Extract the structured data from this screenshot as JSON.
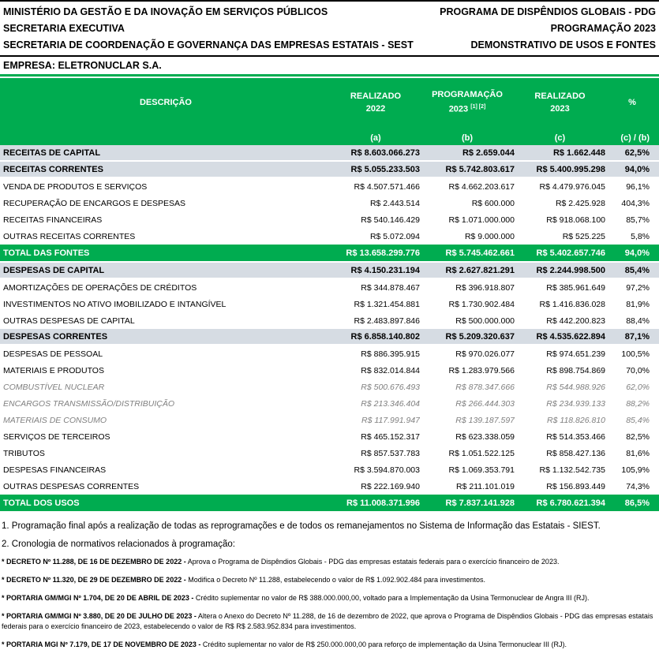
{
  "colors": {
    "green": "#00AC50",
    "section_bg": "#D6DCE3",
    "detail_text": "#7f7f7f"
  },
  "letterhead": {
    "left_lines": [
      "MINISTÉRIO DA GESTÃO E DA INOVAÇÃO EM SERVIÇOS PÚBLICOS",
      "SECRETARIA EXECUTIVA",
      "SECRETARIA DE COORDENAÇÃO E GOVERNANÇA DAS EMPRESAS ESTATAIS - SEST"
    ],
    "right_lines": [
      "PROGRAMA DE DISPÊNDIOS GLOBAIS - PDG",
      "PROGRAMAÇÃO 2023",
      "DEMONSTRATIVO DE USOS E FONTES"
    ],
    "company": "EMPRESA: ELETRONUCLAR S.A."
  },
  "table": {
    "columns": {
      "desc": "DESCRIÇÃO",
      "a": {
        "line1": "REALIZADO",
        "line2": "2022",
        "sub": "(a)"
      },
      "b": {
        "line1": "PROGRAMAÇÃO",
        "line2": "2023",
        "sup": "[1] [2]",
        "sub": "(b)"
      },
      "c": {
        "line1": "REALIZADO",
        "line2": "2023",
        "sub": "(c)"
      },
      "pct": {
        "line1": "%",
        "sub": "(c) / (b)"
      }
    },
    "rows": [
      {
        "style": "section",
        "desc": "RECEITAS DE CAPITAL",
        "a": "R$ 8.603.066.273",
        "b": "R$ 2.659.044",
        "c": "R$ 1.662.448",
        "pct": "62,5%"
      },
      {
        "style": "section",
        "desc": "RECEITAS CORRENTES",
        "a": "R$ 5.055.233.503",
        "b": "R$ 5.742.803.617",
        "c": "R$ 5.400.995.298",
        "pct": "94,0%"
      },
      {
        "style": "normal",
        "desc": "VENDA DE PRODUTOS E SERVIÇOS",
        "a": "R$ 4.507.571.466",
        "b": "R$ 4.662.203.617",
        "c": "R$ 4.479.976.045",
        "pct": "96,1%"
      },
      {
        "style": "normal",
        "desc": "RECUPERAÇÃO DE ENCARGOS E DESPESAS",
        "a": "R$ 2.443.514",
        "b": "R$ 600.000",
        "c": "R$ 2.425.928",
        "pct": "404,3%"
      },
      {
        "style": "normal",
        "desc": "RECEITAS FINANCEIRAS",
        "a": "R$ 540.146.429",
        "b": "R$ 1.071.000.000",
        "c": "R$ 918.068.100",
        "pct": "85,7%"
      },
      {
        "style": "normal",
        "desc": "OUTRAS RECEITAS CORRENTES",
        "a": "R$ 5.072.094",
        "b": "R$ 9.000.000",
        "c": "R$ 525.225",
        "pct": "5,8%"
      },
      {
        "style": "total",
        "desc": "TOTAL DAS FONTES",
        "a": "R$ 13.658.299.776",
        "b": "R$ 5.745.462.661",
        "c": "R$ 5.402.657.746",
        "pct": "94,0%"
      },
      {
        "style": "section",
        "desc": "DESPESAS DE CAPITAL",
        "a": "R$ 4.150.231.194",
        "b": "R$ 2.627.821.291",
        "c": "R$ 2.244.998.500",
        "pct": "85,4%"
      },
      {
        "style": "normal",
        "desc": "AMORTIZAÇÕES DE OPERAÇÕES DE CRÉDITOS",
        "a": "R$ 344.878.467",
        "b": "R$ 396.918.807",
        "c": "R$ 385.961.649",
        "pct": "97,2%"
      },
      {
        "style": "normal",
        "desc": "INVESTIMENTOS NO ATIVO IMOBILIZADO E INTANGÍVEL",
        "a": "R$ 1.321.454.881",
        "b": "R$ 1.730.902.484",
        "c": "R$ 1.416.836.028",
        "pct": "81,9%"
      },
      {
        "style": "normal",
        "desc": "OUTRAS DESPESAS DE CAPITAL",
        "a": "R$ 2.483.897.846",
        "b": "R$ 500.000.000",
        "c": "R$ 442.200.823",
        "pct": "88,4%"
      },
      {
        "style": "section",
        "desc": "DESPESAS CORRENTES",
        "a": "R$ 6.858.140.802",
        "b": "R$ 5.209.320.637",
        "c": "R$ 4.535.622.894",
        "pct": "87,1%"
      },
      {
        "style": "normal",
        "desc": "DESPESAS DE PESSOAL",
        "a": "R$ 886.395.915",
        "b": "R$ 970.026.077",
        "c": "R$ 974.651.239",
        "pct": "100,5%"
      },
      {
        "style": "normal",
        "desc": "MATERIAIS E PRODUTOS",
        "a": "R$ 832.014.844",
        "b": "R$ 1.283.979.566",
        "c": "R$ 898.754.869",
        "pct": "70,0%"
      },
      {
        "style": "detail",
        "desc": "COMBUSTÍVEL NUCLEAR",
        "a": "R$ 500.676.493",
        "b": "R$ 878.347.666",
        "c": "R$ 544.988.926",
        "pct": "62,0%"
      },
      {
        "style": "detail",
        "desc": "ENCARGOS TRANSMISSÃO/DISTRIBUIÇÃO",
        "a": "R$ 213.346.404",
        "b": "R$ 266.444.303",
        "c": "R$ 234.939.133",
        "pct": "88,2%"
      },
      {
        "style": "detail",
        "desc": "MATERIAIS DE CONSUMO",
        "a": "R$ 117.991.947",
        "b": "R$ 139.187.597",
        "c": "R$ 118.826.810",
        "pct": "85,4%"
      },
      {
        "style": "normal",
        "desc": "SERVIÇOS DE TERCEIROS",
        "a": "R$ 465.152.317",
        "b": "R$ 623.338.059",
        "c": "R$ 514.353.466",
        "pct": "82,5%"
      },
      {
        "style": "normal",
        "desc": "TRIBUTOS",
        "a": "R$ 857.537.783",
        "b": "R$ 1.051.522.125",
        "c": "R$ 858.427.136",
        "pct": "81,6%"
      },
      {
        "style": "normal",
        "desc": "DESPESAS FINANCEIRAS",
        "a": "R$ 3.594.870.003",
        "b": "R$ 1.069.353.791",
        "c": "R$ 1.132.542.735",
        "pct": "105,9%"
      },
      {
        "style": "normal",
        "desc": "OUTRAS DESPESAS CORRENTES",
        "a": "R$ 222.169.940",
        "b": "R$ 211.101.019",
        "c": "R$ 156.893.449",
        "pct": "74,3%"
      },
      {
        "style": "total",
        "desc": "TOTAL DOS USOS",
        "a": "R$ 11.008.371.996",
        "b": "R$ 7.837.141.928",
        "c": "R$ 6.780.621.394",
        "pct": "86,5%"
      }
    ]
  },
  "footnotes": {
    "n1": "1. Programação final após a realização de todas as reprogramações e de todos os remanejamentos no Sistema de Informação das Estatais - SIEST.",
    "n2": "2. Cronologia de normativos relacionados à programação:",
    "bullets": [
      {
        "label": "* DECRETO Nº 11.288, DE 16 DE DEZEMBRO DE 2022 -",
        "text": " Aprova o Programa de Dispêndios Globais - PDG das empresas estatais federais para o exercício financeiro de 2023."
      },
      {
        "label": "* DECRETO Nº 11.320, DE 29 DE DEZEMBRO DE 2022 -",
        "text": " Modifica o Decreto Nº 11.288, estabelecendo o valor de R$ 1.092.902.484 para investimentos."
      },
      {
        "label": "* PORTARIA GM/MGI Nº 1.704, DE 20 DE ABRIL DE 2023 -",
        "text": " Crédito suplementar no valor de R$ 388.000.000,00, voltado para a Implementação da Usina Termonuclear de Angra III (RJ)."
      },
      {
        "label": "* PORTARIA GM/MGI Nº 3.880, DE 20 DE JULHO DE 2023 -",
        "text": " Altera o Anexo do Decreto Nº 11.288, de 16 de dezembro de 2022, que aprova o Programa de Dispêndios Globais - PDG das empresas estatais federais para o exercício financeiro de 2023,  estabelecendo o valor de R$ R$ 2.583.952.834 para investimentos."
      },
      {
        "label": "* PORTARIA MGI Nº 7.179, DE 17 DE NOVEMBRO DE 2023 -",
        "text": " Crédito suplementar no valor de R$ 250.000.000,00 para reforço de implementação da Usina Termonuclear III (RJ)."
      }
    ]
  }
}
